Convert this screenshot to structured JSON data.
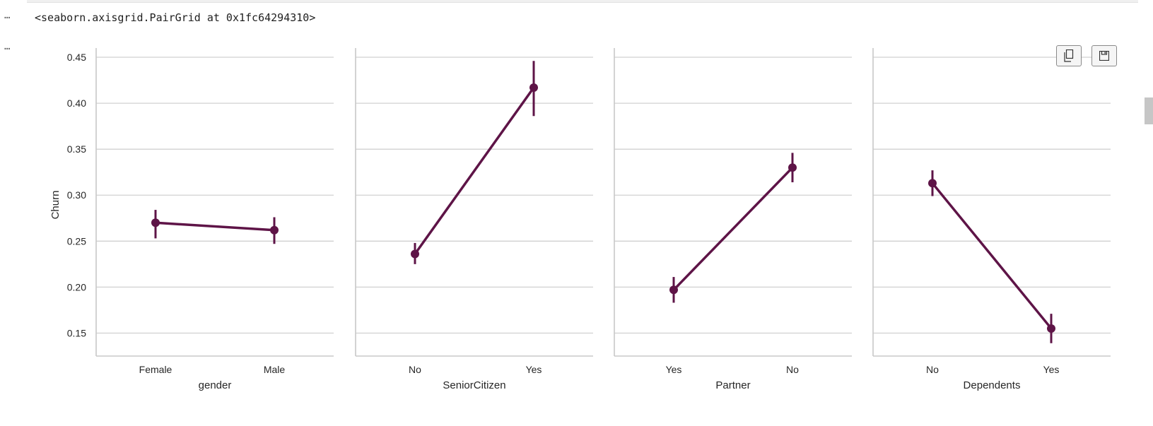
{
  "cell": {
    "output_prompt": "…",
    "output_text": "<seaborn.axisgrid.PairGrid at 0x1fc64294310>",
    "plot_prompt": "…"
  },
  "toolbar": {
    "copy_icon": "copy-icon",
    "save_icon": "save-icon"
  },
  "colors": {
    "line": "#5e1447",
    "grid": "#d0d0d0",
    "axis": "#c8c8c8",
    "text": "#262626"
  },
  "chart_data": {
    "type": "line",
    "style": "pointplot-with-error-bars",
    "ylabel": "Churn",
    "ylim": [
      0.125,
      0.46
    ],
    "yticks": [
      0.15,
      0.2,
      0.25,
      0.3,
      0.35,
      0.4,
      0.45
    ],
    "ytick_labels": [
      "0.15",
      "0.20",
      "0.25",
      "0.30",
      "0.35",
      "0.40",
      "0.45"
    ],
    "grid": true,
    "panels": [
      {
        "xlabel": "gender",
        "categories": [
          "Female",
          "Male"
        ],
        "values": [
          0.27,
          0.262
        ],
        "ci_low": [
          0.253,
          0.247
        ],
        "ci_high": [
          0.284,
          0.276
        ]
      },
      {
        "xlabel": "SeniorCitizen",
        "categories": [
          "No",
          "Yes"
        ],
        "values": [
          0.236,
          0.417
        ],
        "ci_low": [
          0.225,
          0.386
        ],
        "ci_high": [
          0.248,
          0.446
        ]
      },
      {
        "xlabel": "Partner",
        "categories": [
          "Yes",
          "No"
        ],
        "values": [
          0.197,
          0.33
        ],
        "ci_low": [
          0.183,
          0.314
        ],
        "ci_high": [
          0.211,
          0.346
        ]
      },
      {
        "xlabel": "Dependents",
        "categories": [
          "No",
          "Yes"
        ],
        "values": [
          0.313,
          0.155
        ],
        "ci_low": [
          0.299,
          0.139
        ],
        "ci_high": [
          0.327,
          0.171
        ]
      }
    ]
  }
}
